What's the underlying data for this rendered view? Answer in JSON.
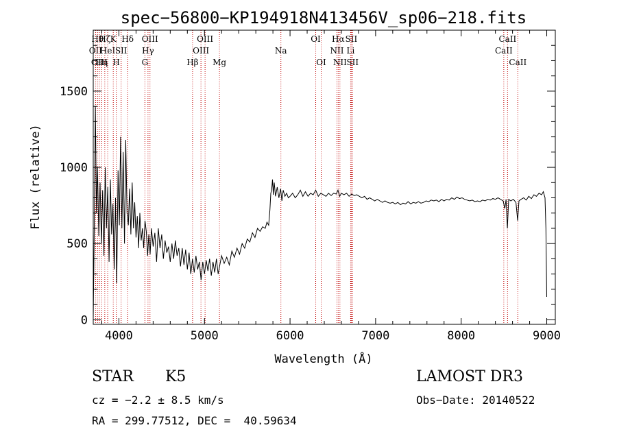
{
  "chart_data": {
    "type": "line",
    "title": "spec−56800−KP194918N413456V_sp06−218.fits",
    "xlabel": "Wavelength (Å)",
    "ylabel": "Flux (relative)",
    "xlim": [
      3700,
      9100
    ],
    "ylim": [
      -30,
      1900
    ],
    "xticks": [
      4000,
      5000,
      6000,
      7000,
      8000,
      9000
    ],
    "yticks": [
      0,
      500,
      1000,
      1500
    ],
    "grid": false,
    "series": [
      {
        "points": [
          [
            3700,
            10
          ],
          [
            3712,
            600
          ],
          [
            3725,
            1400
          ],
          [
            3738,
            700
          ],
          [
            3750,
            1000
          ],
          [
            3765,
            550
          ],
          [
            3780,
            900
          ],
          [
            3795,
            500
          ],
          [
            3810,
            850
          ],
          [
            3825,
            420
          ],
          [
            3840,
            1000
          ],
          [
            3855,
            600
          ],
          [
            3870,
            870
          ],
          [
            3885,
            380
          ],
          [
            3900,
            920
          ],
          [
            3915,
            560
          ],
          [
            3930,
            760
          ],
          [
            3945,
            330
          ],
          [
            3960,
            800
          ],
          [
            3975,
            240
          ],
          [
            3990,
            980
          ],
          [
            4005,
            620
          ],
          [
            4020,
            1200
          ],
          [
            4035,
            600
          ],
          [
            4050,
            1100
          ],
          [
            4065,
            500
          ],
          [
            4080,
            1180
          ],
          [
            4095,
            700
          ],
          [
            4110,
            620
          ],
          [
            4125,
            860
          ],
          [
            4140,
            560
          ],
          [
            4155,
            900
          ],
          [
            4170,
            600
          ],
          [
            4185,
            770
          ],
          [
            4200,
            540
          ],
          [
            4215,
            680
          ],
          [
            4230,
            470
          ],
          [
            4245,
            700
          ],
          [
            4260,
            520
          ],
          [
            4275,
            600
          ],
          [
            4290,
            470
          ],
          [
            4305,
            650
          ],
          [
            4320,
            580
          ],
          [
            4335,
            420
          ],
          [
            4350,
            560
          ],
          [
            4365,
            430
          ],
          [
            4380,
            600
          ],
          [
            4400,
            480
          ],
          [
            4420,
            570
          ],
          [
            4440,
            380
          ],
          [
            4460,
            600
          ],
          [
            4480,
            470
          ],
          [
            4500,
            560
          ],
          [
            4520,
            400
          ],
          [
            4540,
            520
          ],
          [
            4560,
            440
          ],
          [
            4580,
            480
          ],
          [
            4600,
            380
          ],
          [
            4620,
            500
          ],
          [
            4640,
            400
          ],
          [
            4660,
            520
          ],
          [
            4680,
            420
          ],
          [
            4700,
            470
          ],
          [
            4720,
            350
          ],
          [
            4740,
            470
          ],
          [
            4760,
            360
          ],
          [
            4780,
            460
          ],
          [
            4800,
            330
          ],
          [
            4820,
            440
          ],
          [
            4840,
            300
          ],
          [
            4860,
            400
          ],
          [
            4880,
            310
          ],
          [
            4900,
            420
          ],
          [
            4920,
            330
          ],
          [
            4940,
            380
          ],
          [
            4960,
            260
          ],
          [
            4980,
            380
          ],
          [
            5000,
            300
          ],
          [
            5020,
            390
          ],
          [
            5040,
            320
          ],
          [
            5060,
            400
          ],
          [
            5080,
            290
          ],
          [
            5100,
            380
          ],
          [
            5120,
            310
          ],
          [
            5140,
            400
          ],
          [
            5160,
            300
          ],
          [
            5180,
            360
          ],
          [
            5200,
            420
          ],
          [
            5230,
            370
          ],
          [
            5260,
            410
          ],
          [
            5290,
            360
          ],
          [
            5320,
            450
          ],
          [
            5350,
            410
          ],
          [
            5380,
            470
          ],
          [
            5410,
            430
          ],
          [
            5440,
            500
          ],
          [
            5470,
            470
          ],
          [
            5500,
            530
          ],
          [
            5530,
            510
          ],
          [
            5560,
            570
          ],
          [
            5590,
            540
          ],
          [
            5620,
            600
          ],
          [
            5650,
            580
          ],
          [
            5680,
            610
          ],
          [
            5710,
            600
          ],
          [
            5730,
            640
          ],
          [
            5750,
            620
          ],
          [
            5765,
            720
          ],
          [
            5775,
            830
          ],
          [
            5785,
            850
          ],
          [
            5795,
            920
          ],
          [
            5805,
            820
          ],
          [
            5815,
            900
          ],
          [
            5830,
            810
          ],
          [
            5850,
            870
          ],
          [
            5870,
            800
          ],
          [
            5890,
            860
          ],
          [
            5905,
            780
          ],
          [
            5920,
            850
          ],
          [
            5940,
            810
          ],
          [
            5960,
            830
          ],
          [
            5980,
            800
          ],
          [
            6000,
            810
          ],
          [
            6030,
            830
          ],
          [
            6060,
            800
          ],
          [
            6090,
            820
          ],
          [
            6120,
            850
          ],
          [
            6150,
            810
          ],
          [
            6180,
            840
          ],
          [
            6210,
            810
          ],
          [
            6240,
            830
          ],
          [
            6270,
            820
          ],
          [
            6300,
            850
          ],
          [
            6330,
            810
          ],
          [
            6360,
            830
          ],
          [
            6390,
            820
          ],
          [
            6420,
            810
          ],
          [
            6450,
            830
          ],
          [
            6480,
            815
          ],
          [
            6510,
            830
          ],
          [
            6540,
            825
          ],
          [
            6560,
            850
          ],
          [
            6580,
            810
          ],
          [
            6600,
            830
          ],
          [
            6630,
            820
          ],
          [
            6660,
            830
          ],
          [
            6690,
            810
          ],
          [
            6720,
            825
          ],
          [
            6750,
            815
          ],
          [
            6780,
            820
          ],
          [
            6810,
            810
          ],
          [
            6840,
            800
          ],
          [
            6870,
            810
          ],
          [
            6900,
            790
          ],
          [
            6930,
            800
          ],
          [
            6960,
            790
          ],
          [
            6990,
            780
          ],
          [
            7020,
            790
          ],
          [
            7050,
            780
          ],
          [
            7080,
            770
          ],
          [
            7110,
            780
          ],
          [
            7140,
            770
          ],
          [
            7170,
            765
          ],
          [
            7200,
            770
          ],
          [
            7230,
            760
          ],
          [
            7260,
            770
          ],
          [
            7290,
            755
          ],
          [
            7320,
            765
          ],
          [
            7350,
            760
          ],
          [
            7380,
            775
          ],
          [
            7410,
            760
          ],
          [
            7440,
            770
          ],
          [
            7470,
            765
          ],
          [
            7500,
            775
          ],
          [
            7530,
            765
          ],
          [
            7560,
            770
          ],
          [
            7590,
            780
          ],
          [
            7620,
            775
          ],
          [
            7650,
            785
          ],
          [
            7680,
            780
          ],
          [
            7710,
            785
          ],
          [
            7740,
            775
          ],
          [
            7770,
            790
          ],
          [
            7800,
            780
          ],
          [
            7830,
            790
          ],
          [
            7860,
            785
          ],
          [
            7890,
            800
          ],
          [
            7920,
            790
          ],
          [
            7950,
            805
          ],
          [
            7980,
            795
          ],
          [
            8010,
            800
          ],
          [
            8040,
            790
          ],
          [
            8070,
            785
          ],
          [
            8100,
            780
          ],
          [
            8130,
            785
          ],
          [
            8160,
            775
          ],
          [
            8190,
            780
          ],
          [
            8220,
            775
          ],
          [
            8250,
            785
          ],
          [
            8280,
            780
          ],
          [
            8310,
            790
          ],
          [
            8340,
            785
          ],
          [
            8370,
            795
          ],
          [
            8400,
            790
          ],
          [
            8430,
            800
          ],
          [
            8460,
            790
          ],
          [
            8490,
            780
          ],
          [
            8510,
            730
          ],
          [
            8525,
            790
          ],
          [
            8540,
            600
          ],
          [
            8555,
            790
          ],
          [
            8580,
            780
          ],
          [
            8610,
            790
          ],
          [
            8640,
            770
          ],
          [
            8660,
            650
          ],
          [
            8675,
            780
          ],
          [
            8700,
            790
          ],
          [
            8730,
            800
          ],
          [
            8760,
            785
          ],
          [
            8790,
            810
          ],
          [
            8820,
            795
          ],
          [
            8850,
            820
          ],
          [
            8880,
            810
          ],
          [
            8910,
            830
          ],
          [
            8940,
            820
          ],
          [
            8960,
            840
          ],
          [
            8980,
            800
          ],
          [
            8990,
            600
          ],
          [
            9000,
            150
          ]
        ]
      }
    ],
    "line_markers": [
      {
        "x": 3727,
        "label": "OII",
        "row": 2
      },
      {
        "x": 3750,
        "label": "Hθ",
        "row": 1
      },
      {
        "x": 3771,
        "label": "OIII",
        "row": 3
      },
      {
        "x": 3798,
        "label": "Hη",
        "row": 3
      },
      {
        "x": 3835,
        "label": "Hζ",
        "row": 1
      },
      {
        "x": 3869,
        "label": "HeI",
        "row": 2
      },
      {
        "x": 3934,
        "label": "K",
        "row": 1
      },
      {
        "x": 3969,
        "label": "H",
        "row": 3
      },
      {
        "x": 4026,
        "label": "SII",
        "row": 2
      },
      {
        "x": 4102,
        "label": "Hδ",
        "row": 1
      },
      {
        "x": 4304,
        "label": "G",
        "row": 3
      },
      {
        "x": 4340,
        "label": "Hγ",
        "row": 2
      },
      {
        "x": 4363,
        "label": "OIII",
        "row": 1
      },
      {
        "x": 4861,
        "label": "Hβ",
        "row": 3
      },
      {
        "x": 4959,
        "label": "OIII",
        "row": 2
      },
      {
        "x": 5007,
        "label": "OIII",
        "row": 1
      },
      {
        "x": 5175,
        "label": "Mg",
        "row": 3
      },
      {
        "x": 5893,
        "label": "Na",
        "row": 2
      },
      {
        "x": 6300,
        "label": "OI",
        "row": 1
      },
      {
        "x": 6364,
        "label": "OI",
        "row": 3
      },
      {
        "x": 6548,
        "label": "NII",
        "row": 2
      },
      {
        "x": 6563,
        "label": "Hα",
        "row": 1
      },
      {
        "x": 6583,
        "label": "NII",
        "row": 3
      },
      {
        "x": 6708,
        "label": "Li",
        "row": 2
      },
      {
        "x": 6716,
        "label": "SII",
        "row": 1
      },
      {
        "x": 6731,
        "label": "SII",
        "row": 3
      },
      {
        "x": 8498,
        "label": "CaII",
        "row": 2
      },
      {
        "x": 8542,
        "label": "CaII",
        "row": 1
      },
      {
        "x": 8662,
        "label": "CaII",
        "row": 3
      }
    ]
  },
  "footer": {
    "class_label": "STAR",
    "subclass": "K5",
    "survey": "LAMOST DR3",
    "redshift_line": "cz = −2.2 ± 8.5 km/s",
    "obs_date_line": "Obs−Date: 20140522",
    "coords_line": "RA = 299.77512, DEC =  40.59634"
  }
}
